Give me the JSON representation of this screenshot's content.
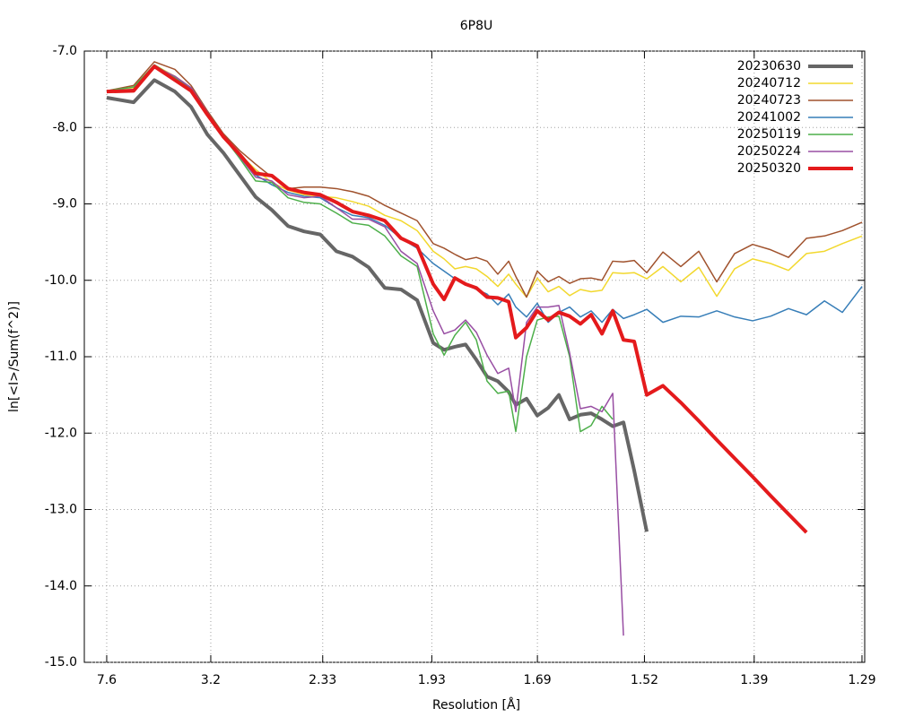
{
  "chart_data": {
    "type": "line",
    "title": "6P8U",
    "x_label": "Resolution [Å]",
    "y_label": "ln[<I>/Sum(f^2)]",
    "grid": true,
    "legend": "top-right",
    "xlim": [
      0,
      0.603
    ],
    "ylim": [
      -15,
      -7
    ],
    "xticks": [
      {
        "value": 0.0173,
        "label": "7.6"
      },
      {
        "value": 0.0977,
        "label": "3.2"
      },
      {
        "value": 0.1842,
        "label": "2.33"
      },
      {
        "value": 0.2685,
        "label": "1.93"
      },
      {
        "value": 0.3501,
        "label": "1.69"
      },
      {
        "value": 0.4328,
        "label": "1.52"
      },
      {
        "value": 0.5176,
        "label": "1.39"
      },
      {
        "value": 0.6009,
        "label": "1.29"
      }
    ],
    "yticks": [
      {
        "value": -15,
        "label": "-15.0"
      },
      {
        "value": -14,
        "label": "-14.0"
      },
      {
        "value": -13,
        "label": "-13.0"
      },
      {
        "value": -12,
        "label": "-12.0"
      },
      {
        "value": -11,
        "label": "-11.0"
      },
      {
        "value": -10,
        "label": "-10.0"
      },
      {
        "value": -9,
        "label": "-9.0"
      },
      {
        "value": -8,
        "label": "-8.0"
      },
      {
        "value": -7,
        "label": "-7.0"
      }
    ],
    "x": [
      0.0173,
      0.0381,
      0.0541,
      0.07,
      0.0825,
      0.095,
      0.1074,
      0.1199,
      0.1324,
      0.1449,
      0.1574,
      0.1698,
      0.1823,
      0.1948,
      0.2072,
      0.2197,
      0.2322,
      0.2447,
      0.2572,
      0.2696,
      0.278,
      0.2863,
      0.2946,
      0.3029,
      0.3112,
      0.3195,
      0.3279,
      0.3334,
      0.3417,
      0.35,
      0.3584,
      0.3667,
      0.375,
      0.3833,
      0.3916,
      0.4,
      0.4083,
      0.4166,
      0.4249,
      0.4346,
      0.4471,
      0.4609,
      0.4748,
      0.4887,
      0.5025,
      0.5164,
      0.5303,
      0.5441,
      0.558,
      0.5719,
      0.5857,
      0.601
    ],
    "series": [
      {
        "name": "20230630",
        "color": "#666666",
        "width": 4,
        "values": [
          -7.61,
          -7.67,
          -7.38,
          -7.53,
          -7.73,
          -8.09,
          -8.33,
          -8.62,
          -8.91,
          -9.08,
          -9.29,
          -9.36,
          -9.4,
          -9.62,
          -9.69,
          -9.83,
          -10.1,
          -10.12,
          -10.26,
          -10.82,
          -10.91,
          -10.87,
          -10.84,
          -11.04,
          -11.26,
          -11.32,
          -11.46,
          -11.63,
          -11.55,
          -11.77,
          -11.67,
          -11.5,
          -11.82,
          -11.76,
          -11.74,
          -11.82,
          -11.91,
          -11.86,
          -12.49,
          -13.29,
          null,
          null,
          null,
          null,
          null,
          null,
          null,
          null,
          null,
          null,
          null,
          null
        ]
      },
      {
        "name": "20240712",
        "color": "#f2d82e",
        "width": 1.5,
        "values": [
          -7.52,
          -7.48,
          -7.18,
          -7.33,
          -7.48,
          -7.8,
          -8.1,
          -8.35,
          -8.55,
          -8.72,
          -8.82,
          -8.88,
          -8.9,
          -8.92,
          -8.97,
          -9.03,
          -9.15,
          -9.22,
          -9.35,
          -9.62,
          -9.72,
          -9.85,
          -9.82,
          -9.85,
          -9.95,
          -10.08,
          -9.92,
          -10.05,
          -10.22,
          -9.97,
          -10.15,
          -10.08,
          -10.2,
          -10.12,
          -10.15,
          -10.13,
          -9.9,
          -9.91,
          -9.9,
          -9.98,
          -9.82,
          -10.02,
          -9.83,
          -10.21,
          -9.85,
          -9.72,
          -9.78,
          -9.87,
          -9.65,
          -9.62,
          -9.52,
          -9.42
        ]
      },
      {
        "name": "20240723",
        "color": "#a0522d",
        "width": 1.5,
        "values": [
          -7.52,
          -7.45,
          -7.14,
          -7.24,
          -7.45,
          -7.78,
          -8.08,
          -8.3,
          -8.48,
          -8.65,
          -8.8,
          -8.78,
          -8.78,
          -8.8,
          -8.84,
          -8.9,
          -9.02,
          -9.12,
          -9.22,
          -9.52,
          -9.58,
          -9.66,
          -9.73,
          -9.7,
          -9.75,
          -9.92,
          -9.75,
          -9.95,
          -10.22,
          -9.88,
          -10.02,
          -9.95,
          -10.04,
          -9.98,
          -9.97,
          -10.0,
          -9.75,
          -9.76,
          -9.74,
          -9.9,
          -9.63,
          -9.82,
          -9.62,
          -10.02,
          -9.65,
          -9.53,
          -9.6,
          -9.7,
          -9.45,
          -9.42,
          -9.35,
          -9.24
        ]
      },
      {
        "name": "20241002",
        "color": "#377eb8",
        "width": 1.5,
        "values": [
          -7.53,
          -7.5,
          -7.18,
          -7.35,
          -7.48,
          -7.8,
          -8.12,
          -8.38,
          -8.62,
          -8.75,
          -8.85,
          -8.9,
          -8.92,
          -9.05,
          -9.15,
          -9.18,
          -9.28,
          -9.45,
          -9.58,
          -9.78,
          -9.88,
          -9.98,
          -10.05,
          -10.12,
          -10.18,
          -10.32,
          -10.18,
          -10.35,
          -10.48,
          -10.3,
          -10.55,
          -10.42,
          -10.35,
          -10.48,
          -10.4,
          -10.55,
          -10.38,
          -10.5,
          -10.45,
          -10.38,
          -10.55,
          -10.47,
          -10.48,
          -10.4,
          -10.48,
          -10.53,
          -10.47,
          -10.37,
          -10.45,
          -10.27,
          -10.42,
          -10.08
        ]
      },
      {
        "name": "20250119",
        "color": "#4daf4a",
        "width": 1.5,
        "values": [
          -7.52,
          -7.47,
          -7.18,
          -7.35,
          -7.5,
          -7.82,
          -8.12,
          -8.4,
          -8.7,
          -8.72,
          -8.92,
          -8.98,
          -9.0,
          -9.12,
          -9.25,
          -9.28,
          -9.42,
          -9.68,
          -9.82,
          -10.7,
          -10.98,
          -10.72,
          -10.55,
          -10.78,
          -11.32,
          -11.48,
          -11.45,
          -11.98,
          -11.0,
          -10.52,
          -10.48,
          -10.47,
          -11.0,
          -11.98,
          -11.9,
          -11.65,
          -11.82,
          null,
          null,
          null,
          null,
          null,
          null,
          null,
          null,
          null,
          null,
          null,
          null,
          null,
          null,
          null
        ]
      },
      {
        "name": "20250224",
        "color": "#984ea3",
        "width": 1.5,
        "values": [
          -7.52,
          -7.5,
          -7.2,
          -7.33,
          -7.48,
          -7.8,
          -8.12,
          -8.38,
          -8.65,
          -8.7,
          -8.88,
          -8.92,
          -8.9,
          -9.05,
          -9.2,
          -9.2,
          -9.3,
          -9.62,
          -9.78,
          -10.4,
          -10.7,
          -10.65,
          -10.52,
          -10.68,
          -10.98,
          -11.22,
          -11.15,
          -11.72,
          -10.55,
          -10.35,
          -10.35,
          -10.33,
          -10.95,
          -11.68,
          -11.65,
          -11.72,
          -11.48,
          -14.65,
          null,
          null,
          null,
          null,
          null,
          null,
          null,
          null,
          null,
          null,
          null,
          null,
          null,
          null
        ]
      },
      {
        "name": "20250320",
        "color": "#e41a1c",
        "width": 4,
        "values": [
          -7.53,
          -7.52,
          -7.2,
          -7.38,
          -7.52,
          -7.83,
          -8.12,
          -8.35,
          -8.6,
          -8.63,
          -8.8,
          -8.85,
          -8.88,
          -8.98,
          -9.1,
          -9.15,
          -9.22,
          -9.45,
          -9.55,
          -10.05,
          -10.25,
          -9.97,
          -10.05,
          -10.1,
          -10.22,
          -10.23,
          -10.28,
          -10.75,
          -10.62,
          -10.4,
          -10.52,
          -10.42,
          -10.47,
          -10.57,
          -10.45,
          -10.7,
          -10.4,
          -10.78,
          -10.8,
          -11.5,
          -11.38,
          -11.6,
          -11.84,
          -12.09,
          -12.33,
          -12.57,
          -12.82,
          -13.06,
          -13.3,
          null,
          null,
          null
        ]
      }
    ]
  }
}
